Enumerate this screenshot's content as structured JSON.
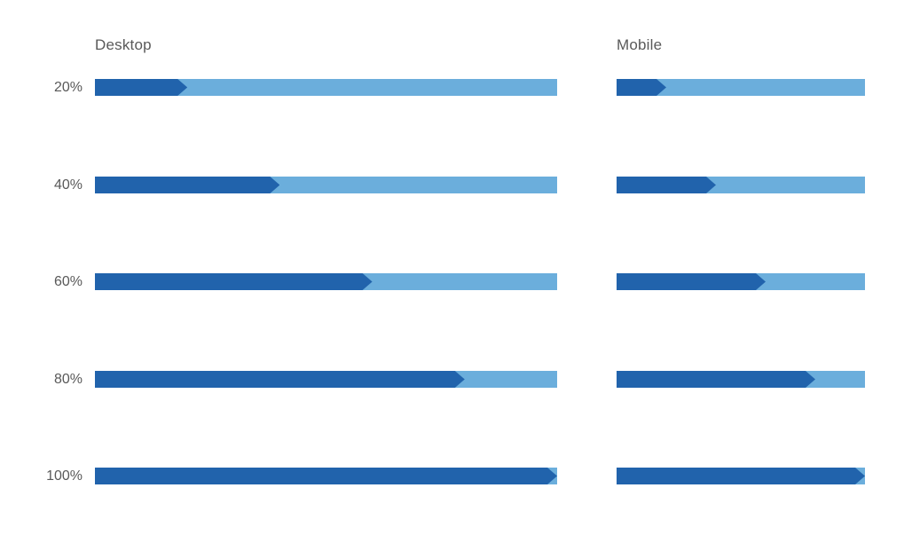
{
  "chart_data": {
    "type": "bar",
    "title": "",
    "columns": [
      {
        "label": "Desktop"
      },
      {
        "label": "Mobile"
      }
    ],
    "categories": [
      "20%",
      "40%",
      "60%",
      "80%",
      "100%"
    ],
    "series": [
      {
        "name": "Desktop",
        "values": [
          20,
          40,
          60,
          80,
          100
        ]
      },
      {
        "name": "Mobile",
        "values": [
          20,
          40,
          60,
          80,
          100
        ]
      }
    ],
    "xlim": [
      0,
      100
    ],
    "legend": "none",
    "grid": false,
    "colors": {
      "fill": "#2163AC",
      "track": "#6BAEDC",
      "label": "#595959",
      "background": "#FFFFFF"
    },
    "bar_style": "progress-bar-with-arrow-tip"
  }
}
